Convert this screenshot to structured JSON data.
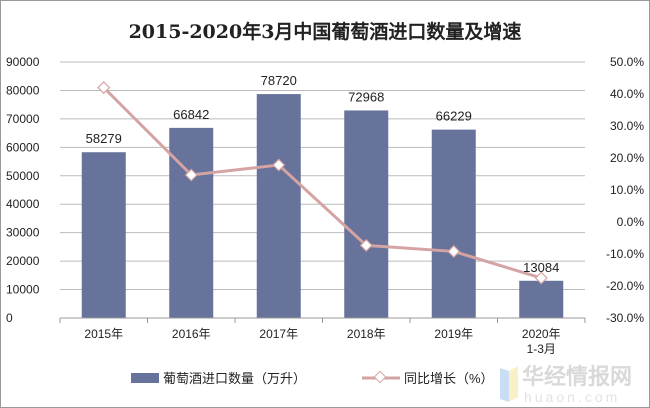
{
  "chart_data": {
    "type": "bar+line",
    "title": "2015-2020年3月中国葡萄酒进口数量及增速",
    "categories": [
      "2015年",
      "2016年",
      "2017年",
      "2018年",
      "2019年",
      "2020年 1-3月"
    ],
    "series": [
      {
        "name": "葡萄酒进口数量（万升）",
        "type": "bar",
        "axis": "left",
        "color": "#67739a",
        "values": [
          58279,
          66842,
          78720,
          72968,
          66229,
          13084
        ],
        "data_labels": [
          "58279",
          "66842",
          "78720",
          "72968",
          "66229",
          "13084"
        ]
      },
      {
        "name": "同比增长（%）",
        "type": "line",
        "axis": "right",
        "color": "#d4a3a3",
        "values": [
          42.0,
          14.7,
          17.8,
          -7.3,
          -9.2,
          -17.5
        ]
      }
    ],
    "y_left": {
      "lim": [
        0,
        90000
      ],
      "ticks": [
        "0",
        "10000",
        "20000",
        "30000",
        "40000",
        "50000",
        "60000",
        "70000",
        "80000",
        "90000"
      ]
    },
    "y_right": {
      "lim": [
        -30,
        50
      ],
      "ticks": [
        "-30.0%",
        "-20.0%",
        "-10.0%",
        "0.0%",
        "10.0%",
        "20.0%",
        "30.0%",
        "40.0%",
        "50.0%"
      ]
    },
    "grid": true,
    "legend": "bottom"
  },
  "watermark": {
    "text": "华经情报网",
    "sub": "huaon.com"
  }
}
